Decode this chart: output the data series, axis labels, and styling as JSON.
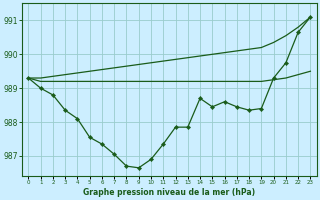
{
  "title": "Graphe pression niveau de la mer (hPa)",
  "background_color": "#cceeff",
  "grid_color": "#99cccc",
  "line_color": "#1a5c1a",
  "ylim": [
    986.4,
    991.5
  ],
  "yticks": [
    987,
    988,
    989,
    990,
    991
  ],
  "hours": [
    0,
    1,
    2,
    3,
    4,
    5,
    6,
    7,
    8,
    9,
    10,
    11,
    12,
    13,
    14,
    15,
    16,
    17,
    18,
    19,
    20,
    21,
    22,
    23
  ],
  "series_main": [
    989.3,
    989.0,
    988.8,
    988.35,
    988.1,
    987.55,
    987.35,
    987.05,
    986.7,
    986.65,
    986.9,
    987.35,
    987.85,
    987.85,
    988.7,
    988.45,
    988.6,
    988.45,
    988.35,
    988.4,
    989.3,
    989.75,
    990.65,
    991.1
  ],
  "series_line1": [
    989.3,
    989.3,
    989.35,
    989.4,
    989.45,
    989.5,
    989.55,
    989.6,
    989.65,
    989.7,
    989.75,
    989.8,
    989.85,
    989.9,
    989.95,
    990.0,
    990.05,
    990.1,
    990.15,
    990.2,
    990.35,
    990.55,
    990.8,
    991.1
  ],
  "series_line2": [
    989.3,
    989.2,
    989.2,
    989.2,
    989.2,
    989.2,
    989.2,
    989.2,
    989.2,
    989.2,
    989.2,
    989.2,
    989.2,
    989.2,
    989.2,
    989.2,
    989.2,
    989.2,
    989.2,
    989.2,
    989.25,
    989.3,
    989.4,
    989.5
  ]
}
